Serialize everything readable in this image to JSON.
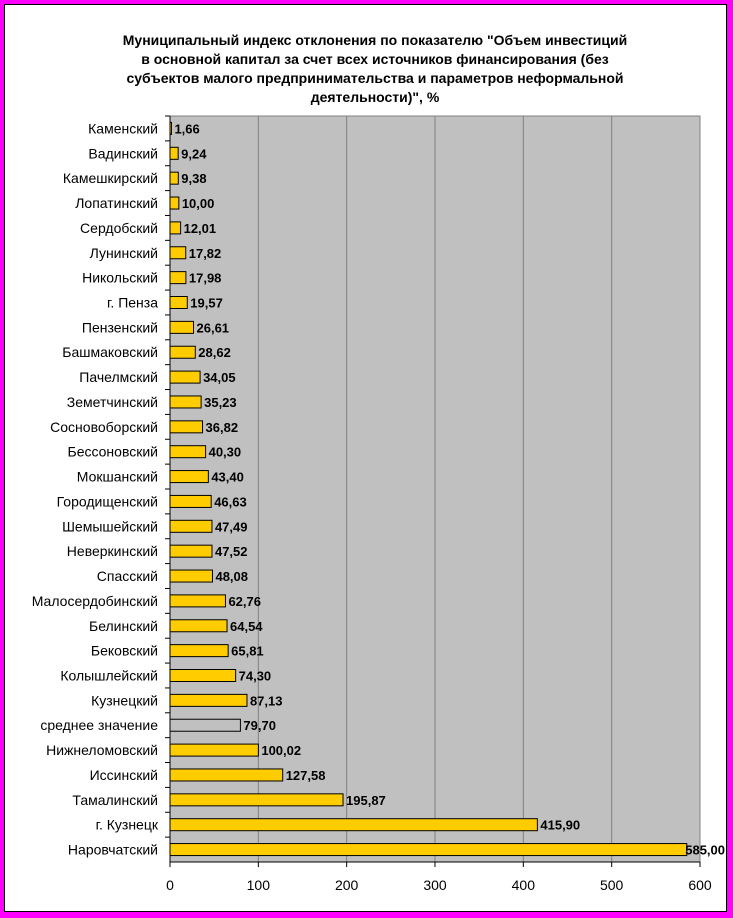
{
  "chart_data": {
    "type": "bar",
    "orientation": "horizontal",
    "title_lines": [
      "Муниципальный индекс отклонения по показателю \"Объем инвестиций",
      "в основной капитал за счет всех источников финансирования (без",
      "субъектов малого предпринимательства и параметров неформальной",
      "деятельности)\", %"
    ],
    "categories": [
      "Каменский",
      "Вадинский",
      "Камешкирский",
      "Лопатинский",
      "Сердобский",
      "Лунинский",
      "Никольский",
      "г. Пенза",
      "Пензенский",
      "Башмаковский",
      "Пачелмский",
      "Земетчинский",
      "Сосновоборский",
      "Бессоновский",
      "Мокшанский",
      "Городищенский",
      "Шемышейский",
      "Неверкинский",
      "Спасский",
      "Малосердобинский",
      "Белинский",
      "Бековский",
      "Колышлейский",
      "Кузнецкий",
      "среднее значение",
      "Нижнеломовский",
      "Иссинский",
      "Тамалинский",
      "г. Кузнецк",
      "Наровчатский"
    ],
    "values": [
      1.66,
      9.24,
      9.38,
      10.0,
      12.01,
      17.82,
      17.98,
      19.57,
      26.61,
      28.62,
      34.05,
      35.23,
      36.82,
      40.3,
      43.4,
      46.63,
      47.49,
      47.52,
      48.08,
      62.76,
      64.54,
      65.81,
      74.3,
      87.13,
      79.7,
      100.02,
      127.58,
      195.87,
      415.9,
      585.0
    ],
    "value_labels": [
      "1,66",
      "9,24",
      "9,38",
      "10,00",
      "12,01",
      "17,82",
      "17,98",
      "19,57",
      "26,61",
      "28,62",
      "34,05",
      "35,23",
      "36,82",
      "40,30",
      "43,40",
      "46,63",
      "47,49",
      "47,52",
      "48,08",
      "62,76",
      "64,54",
      "65,81",
      "74,30",
      "87,13",
      "79,70",
      "100,02",
      "127,58",
      "195,87",
      "415,90",
      "585,00"
    ],
    "highlight_category": "среднее значение",
    "xlim": [
      0,
      600
    ],
    "xticks": [
      0,
      100,
      200,
      300,
      400,
      500,
      600
    ],
    "grid": true,
    "colors": {
      "bar": "#ffcc00",
      "highlight_bar": "#c0c0c0",
      "plot_background": "#c0c0c0",
      "frame_border": "#ff00ff"
    }
  }
}
